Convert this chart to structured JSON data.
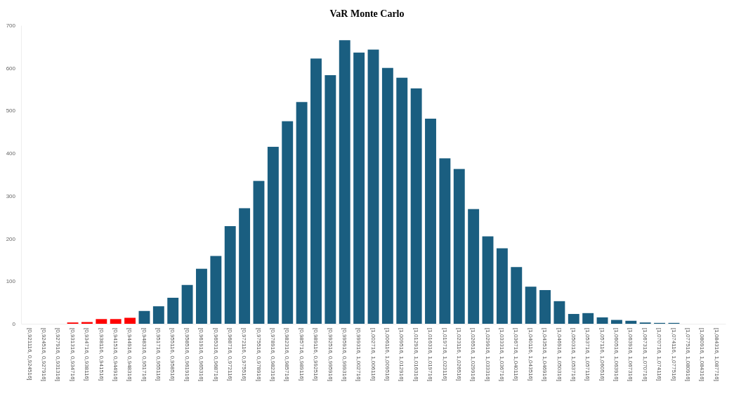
{
  "chart_data": {
    "type": "bar",
    "title": "VaR Monte Carlo",
    "categories": [
      "[0,921116, 0,924516]",
      "[0,924516, 0,927916]",
      "[0,927916, 0,931316]",
      "[0,931316, 0,934716]",
      "[0,934716, 0,938116]",
      "[0,938116, 0,941516]",
      "[0,941516, 0,944916]",
      "[0,944916, 0,948316]",
      "[0,948316, 0,951716]",
      "[0,951716, 0,955116]",
      "[0,955116, 0,958516]",
      "[0,958516, 0,961916]",
      "[0,961916, 0,965316]",
      "[0,965316, 0,968716]",
      "[0,968716, 0,972116]",
      "[0,972116, 0,975516]",
      "[0,975516, 0,978916]",
      "[0,978916, 0,982316]",
      "[0,982316, 0,985716]",
      "[0,985716, 0,989116]",
      "[0,989116, 0,992516]",
      "[0,992516, 0,995916]",
      "[0,995916, 0,999316]",
      "[0,999316, 1,002716]",
      "[1,002716, 1,006116]",
      "[1,006116, 1,009516]",
      "[1,009516, 1,012916]",
      "[1,012916, 1,016316]",
      "[1,016316, 1,019716]",
      "[1,019716, 1,023116]",
      "[1,023116, 1,026516]",
      "[1,026516, 1,029916]",
      "[1,029916, 1,033316]",
      "[1,033316, 1,036716]",
      "[1,036716, 1,040116]",
      "[1,040116, 1,043516]",
      "[1,043516, 1,046916]",
      "[1,046916, 1,050316]",
      "[1,050316, 1,053716]",
      "[1,053716, 1,057116]",
      "[1,057116, 1,060516]",
      "[1,060516, 1,063916]",
      "[1,063916, 1,067316]",
      "[1,067316, 1,070716]",
      "[1,070716, 1,074116]",
      "[1,074116, 1,077516]",
      "[1,077516, 1,080916]",
      "[1,080916, 1,084316]",
      "[1,084316, 1,087716]"
    ],
    "values": [
      0,
      0,
      0,
      3,
      4,
      11,
      11,
      14,
      30,
      41,
      61,
      91,
      129,
      159,
      229,
      271,
      335,
      415,
      475,
      520,
      622,
      583,
      665,
      636,
      643,
      600,
      577,
      552,
      481,
      388,
      363,
      269,
      205,
      177,
      133,
      87,
      79,
      53,
      23,
      25,
      15,
      9,
      7,
      3,
      2,
      2,
      0,
      0,
      0
    ],
    "colors": [
      "#1a5e80",
      "#1a5e80",
      "#1a5e80",
      "#ff0000",
      "#ff0000",
      "#ff0000",
      "#ff0000",
      "#ff0000",
      "#1a5e80",
      "#1a5e80",
      "#1a5e80",
      "#1a5e80",
      "#1a5e80",
      "#1a5e80",
      "#1a5e80",
      "#1a5e80",
      "#1a5e80",
      "#1a5e80",
      "#1a5e80",
      "#1a5e80",
      "#1a5e80",
      "#1a5e80",
      "#1a5e80",
      "#1a5e80",
      "#1a5e80",
      "#1a5e80",
      "#1a5e80",
      "#1a5e80",
      "#1a5e80",
      "#1a5e80",
      "#1a5e80",
      "#1a5e80",
      "#1a5e80",
      "#1a5e80",
      "#1a5e80",
      "#1a5e80",
      "#1a5e80",
      "#1a5e80",
      "#1a5e80",
      "#1a5e80",
      "#1a5e80",
      "#1a5e80",
      "#1a5e80",
      "#1a5e80",
      "#1a5e80",
      "#1a5e80",
      "#1a5e80",
      "#1a5e80",
      "#1a5e80"
    ],
    "ylim": [
      0,
      700
    ],
    "yticks": [
      0,
      100,
      200,
      300,
      400,
      500,
      600,
      700
    ],
    "grid": false
  }
}
